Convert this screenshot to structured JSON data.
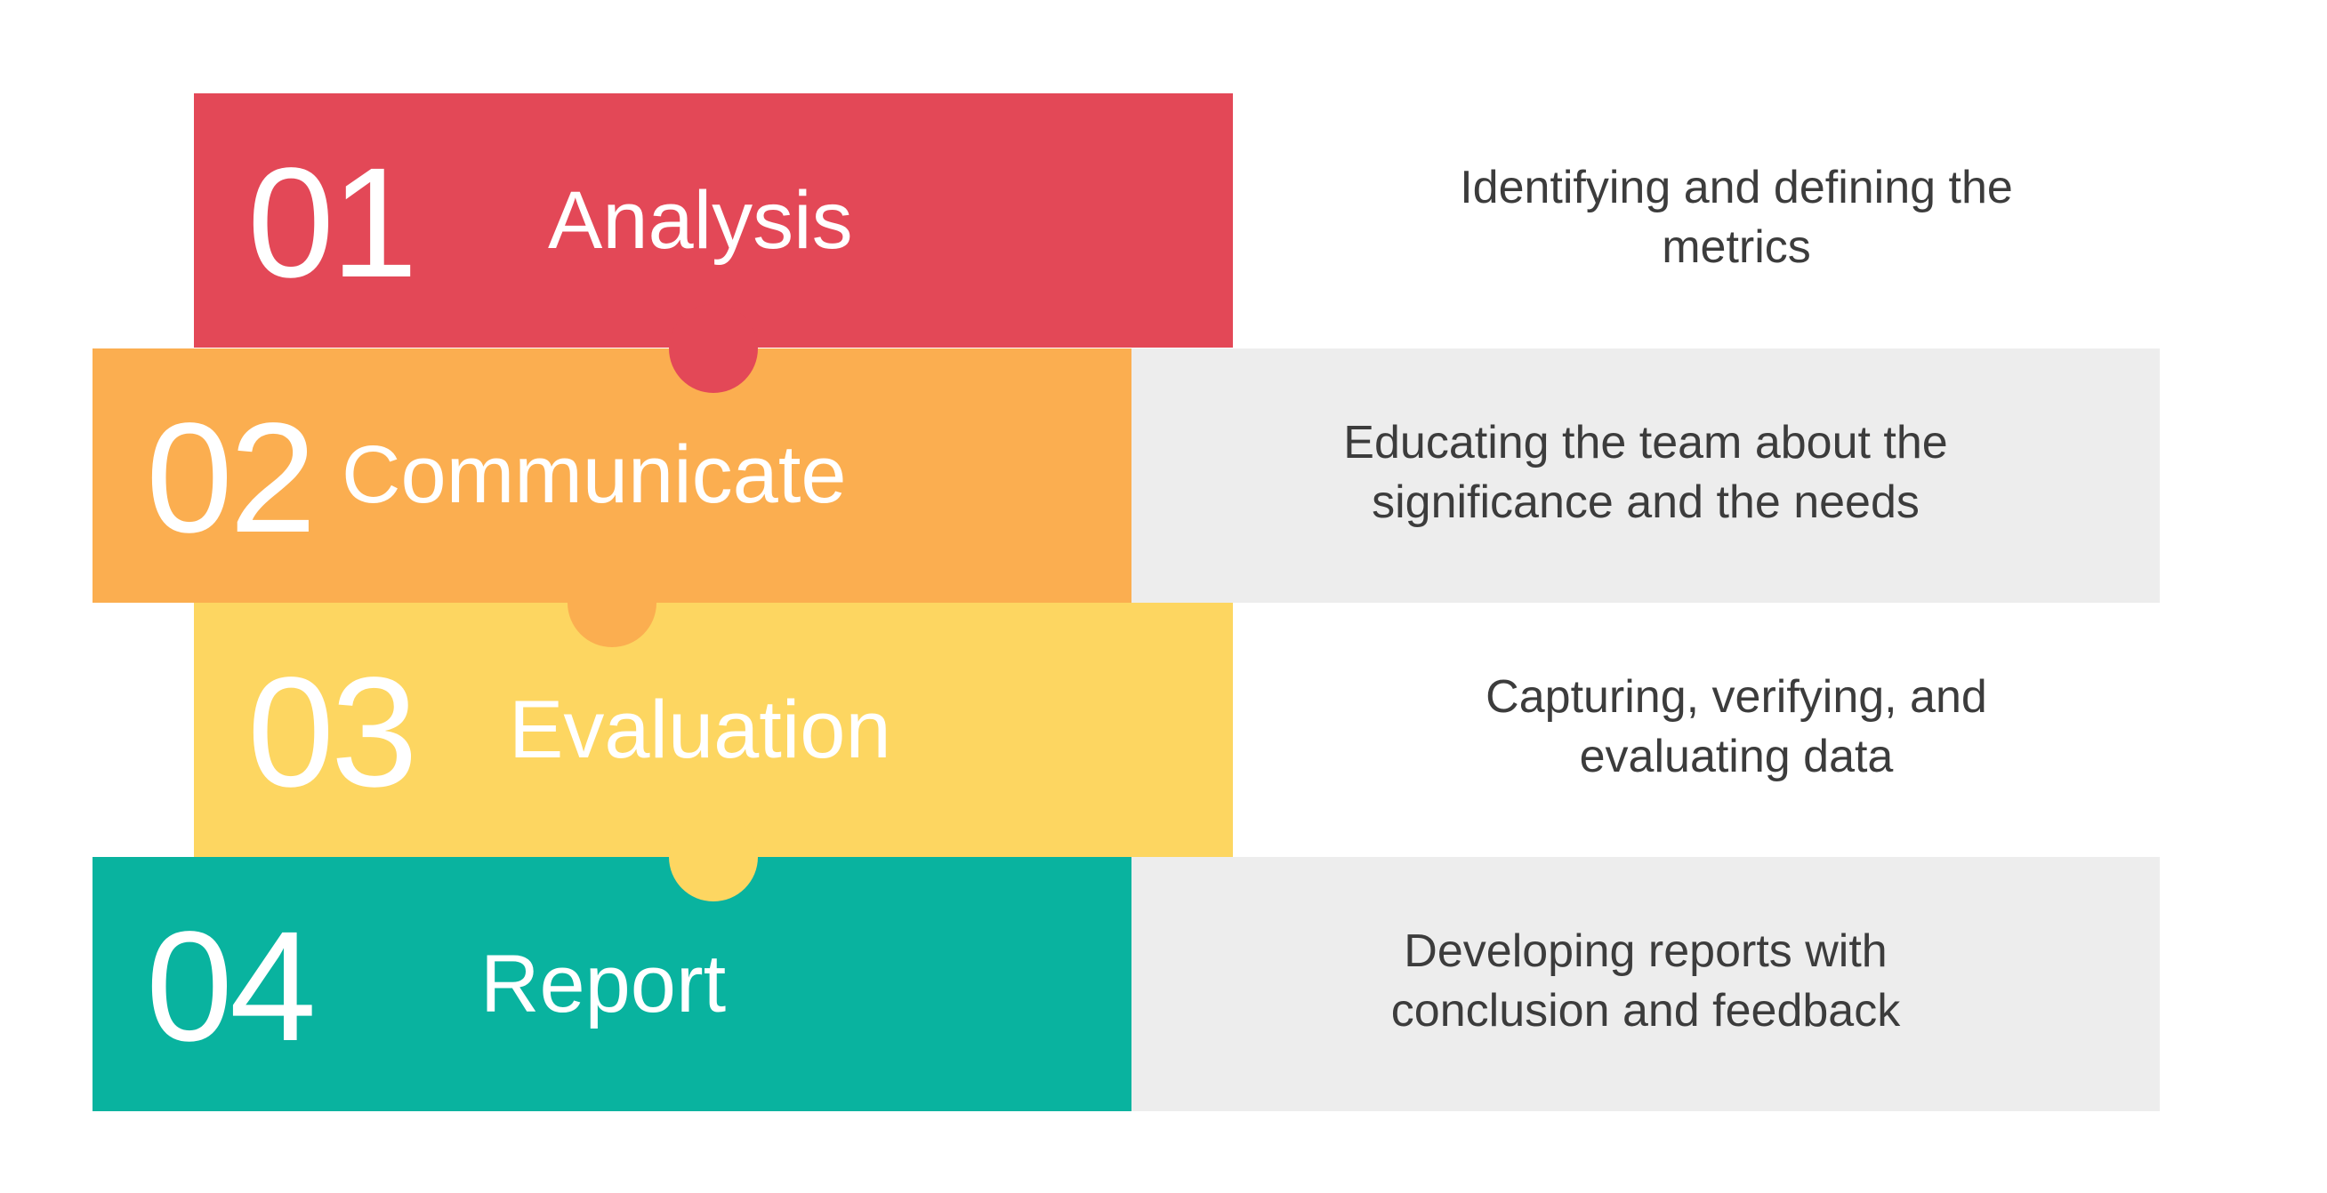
{
  "colors": {
    "step1": "#e34857",
    "step2": "#fbae50",
    "step3": "#fdd661",
    "step4": "#09b39f",
    "panel": "#ededed",
    "description_text": "#3c3c3c",
    "title_text": "#ffffff"
  },
  "steps": [
    {
      "number": "01",
      "title": "Analysis",
      "description_lines": [
        "Identifying and defining the",
        "metrics"
      ]
    },
    {
      "number": "02",
      "title": "Communicate",
      "description_lines": [
        "Educating the team about the",
        "significance and the needs"
      ]
    },
    {
      "number": "03",
      "title": "Evaluation",
      "description_lines": [
        "Capturing, verifying, and",
        "evaluating data"
      ]
    },
    {
      "number": "04",
      "title": "Report",
      "description_lines": [
        "Developing reports with",
        "conclusion and feedback"
      ]
    }
  ]
}
